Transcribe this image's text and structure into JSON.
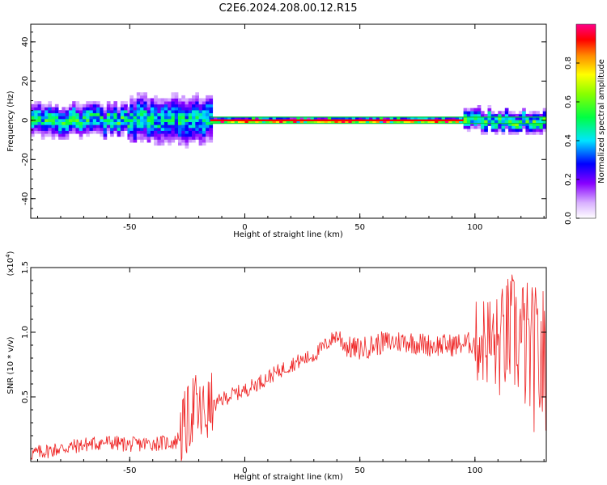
{
  "title": "C2E6.2024.208.00.12.R15",
  "colors": {
    "snr_line": "#ee2222",
    "axis": "#000000",
    "flat_line": "#00cc33"
  },
  "chart_data": [
    {
      "type": "heatmap",
      "xlabel": "Height of straight line (km)",
      "ylabel": "Frequency (Hz)",
      "xlim": [
        -93,
        131
      ],
      "ylim": [
        -50,
        49
      ],
      "xticks": [
        -50,
        0,
        50,
        100
      ],
      "yticks": [
        40,
        20,
        0,
        -20,
        -40
      ],
      "colorbar": {
        "label": "Normalized spectral amplitude",
        "range": [
          0.0,
          1.0
        ],
        "ticks": [
          "0.0",
          "0.2",
          "0.4",
          "0.6",
          "0.8"
        ],
        "colormap": [
          "#ffffff",
          "#8800ff",
          "#0000ff",
          "#00e5ff",
          "#00ff00",
          "#ffff00",
          "#ff8800",
          "#ff0000",
          "#ff0088"
        ]
      },
      "regions": [
        {
          "x_from": -93,
          "x_to": -50,
          "spread_hz": 6,
          "peak": 0.55
        },
        {
          "x_from": -50,
          "x_to": -15,
          "spread_hz": 9,
          "peak": 0.5
        },
        {
          "x_from": -15,
          "x_to": 95,
          "spread_hz": 1,
          "peak": 1.0
        },
        {
          "x_from": 95,
          "x_to": 131,
          "spread_hz": 4,
          "peak": 0.6
        }
      ]
    },
    {
      "type": "line",
      "xlabel": "Height of straight line (km)",
      "ylabel": "SNR (10 * v/v)",
      "y_multiplier": "(x10",
      "y_multiplier_exp": "4",
      "y_multiplier_close": ")",
      "xlim": [
        -93,
        131
      ],
      "ylim": [
        0,
        1.5
      ],
      "xticks": [
        -50,
        0,
        50,
        100
      ],
      "yticks": [
        "0.5",
        "1.0",
        "1.5"
      ],
      "series": [
        {
          "x": [
            -93,
            -80,
            -70,
            -60,
            -50,
            -40,
            -30,
            -25,
            -22,
            -20,
            -15,
            -10,
            -5,
            0,
            10,
            20,
            30,
            35,
            40,
            45,
            50,
            60,
            70,
            80,
            90,
            100,
            105,
            110,
            115,
            120,
            125,
            131
          ],
          "values": [
            0.06,
            0.1,
            0.13,
            0.15,
            0.13,
            0.14,
            0.15,
            0.3,
            0.45,
            0.35,
            0.4,
            0.48,
            0.52,
            0.55,
            0.65,
            0.75,
            0.82,
            0.9,
            0.98,
            0.88,
            0.87,
            0.92,
            0.93,
            0.9,
            0.9,
            0.92,
            0.95,
            0.88,
            1.0,
            0.95,
            0.8,
            0.75
          ]
        }
      ]
    }
  ]
}
